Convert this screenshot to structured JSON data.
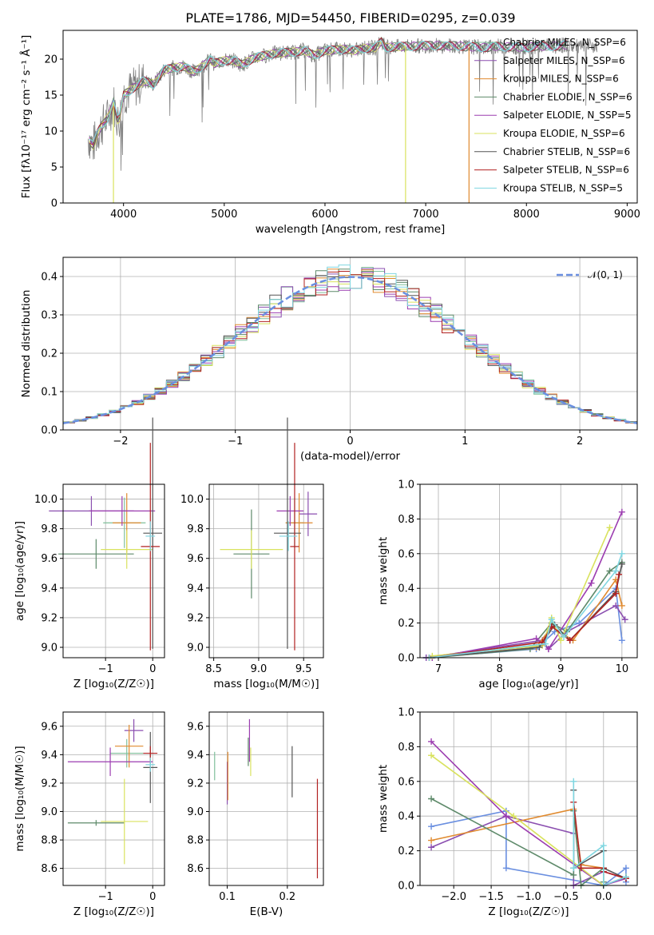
{
  "page_title": "PLATE=1786, MJD=54450, FIBERID=0295, z=0.039",
  "palette": [
    "#7fbf9a",
    "#8b4fb0",
    "#e08a2f",
    "#5e8a6a",
    "#9c3db0",
    "#d9e25e",
    "#555555",
    "#b22222",
    "#7fd6e0"
  ],
  "chart_data": [
    {
      "id": "spectrum",
      "type": "line",
      "title": "PLATE=1786, MJD=54450, FIBERID=0295, z=0.039",
      "xlabel": "wavelength [Angstrom, rest frame]",
      "ylabel": "Flux [fλ10⁻¹⁷ erg cm⁻² s⁻¹ Å⁻¹]",
      "xlim": [
        3400,
        9100
      ],
      "ylim": [
        0,
        24
      ],
      "xticks": [
        4000,
        5000,
        6000,
        7000,
        8000,
        9000
      ],
      "yticks": [
        0,
        5,
        10,
        15,
        20
      ],
      "grid": false,
      "legend_position": "top-right",
      "legend": [
        "Chabrier MILES, N_SSP=6",
        "Salpeter MILES, N_SSP=6",
        "Kroupa MILES, N_SSP=6",
        "Chabrier ELODIE, N_SSP=6",
        "Salpeter ELODIE, N_SSP=5",
        "Kroupa ELODIE, N_SSP=6",
        "Chabrier STELIB, N_SSP=6",
        "Salpeter STELIB, N_SSP=6",
        "Kroupa STELIB, N_SSP=5"
      ],
      "data_x": [
        3650,
        3700,
        3750,
        3800,
        3850,
        3900,
        3950,
        4000,
        4050,
        4100,
        4200,
        4300,
        4400,
        4500,
        4600,
        4700,
        4800,
        4861,
        4900,
        5000,
        5100,
        5175,
        5300,
        5400,
        5500,
        5600,
        5700,
        5800,
        5890,
        6000,
        6100,
        6200,
        6300,
        6400,
        6500,
        6563,
        6600,
        6700,
        6800,
        6900,
        7000,
        7100,
        7200,
        7300,
        7400,
        7500,
        7600,
        7700,
        7800,
        7900,
        8000,
        8100,
        8200,
        8300,
        8400,
        8500,
        8600,
        8700
      ],
      "data_y": [
        9,
        8,
        10,
        11,
        12,
        14,
        11,
        15,
        15.5,
        16,
        17,
        16.5,
        18.5,
        18.8,
        19,
        18.2,
        19.2,
        20,
        19.4,
        19.8,
        19.8,
        19.2,
        20.2,
        20.5,
        20.8,
        20.9,
        21,
        21.2,
        20.5,
        21.2,
        21.3,
        21.4,
        21.2,
        21.5,
        21.6,
        22.5,
        21.6,
        21.7,
        21.8,
        21.8,
        21.9,
        21.9,
        21.8,
        21.9,
        21.7,
        21.7,
        21.6,
        21.8,
        21.7,
        21.7,
        21.6,
        21.8,
        21.8,
        21.8,
        22,
        21.7,
        21.7,
        21.9
      ],
      "model_cutoffs": [
        {
          "series": "Kroupa ELODIE, N_SSP=6",
          "x": 3900
        },
        {
          "series": "Kroupa ELODIE, N_SSP=6",
          "x": 6800
        },
        {
          "series": "Kroupa MILES, N_SSP=6",
          "x": 7430
        }
      ]
    },
    {
      "id": "residuals",
      "type": "bar",
      "xlabel": "(data-model)/error",
      "ylabel": "Normed distribution",
      "xlim": [
        -2.5,
        2.5
      ],
      "ylim": [
        0,
        0.45
      ],
      "xticks": [
        -2,
        -1,
        0,
        1,
        2
      ],
      "yticks": [
        0.0,
        0.1,
        0.2,
        0.3,
        0.4
      ],
      "grid": true,
      "legend": [
        "𝒩(0, 1)"
      ],
      "legend_position": "top-right",
      "bin_width": 0.1,
      "bin_start": -2.5,
      "reference_curve": "normal(0,1)"
    },
    {
      "id": "age-vs-z",
      "type": "scatter",
      "xlabel": "Z [log₁₀(Z/Z☉)]",
      "ylabel": "age  [log₁₀(age/yr)]",
      "xlim": [
        -1.9,
        0.25
      ],
      "ylim": [
        8.93,
        10.1
      ],
      "xticks": [
        -1,
        0
      ],
      "yticks": [
        9.0,
        9.2,
        9.4,
        9.6,
        9.8,
        10.0
      ],
      "grid": true,
      "points": [
        {
          "x": -0.6,
          "y": 9.84,
          "xerr": 0.45,
          "yerr": 0.17
        },
        {
          "x": -1.3,
          "y": 9.92,
          "xerr": 0.9,
          "yerr": 0.1
        },
        {
          "x": -0.55,
          "y": 9.84,
          "xerr": 0.3,
          "yerr": 0.2
        },
        {
          "x": -1.2,
          "y": 9.63,
          "xerr": 0.8,
          "yerr": 0.1
        },
        {
          "x": -0.65,
          "y": 9.92,
          "xerr": 0.7,
          "yerr": 0.1
        },
        {
          "x": -0.55,
          "y": 9.66,
          "xerr": 0.55,
          "yerr": 0.13
        },
        {
          "x": 0.0,
          "y": 9.77,
          "xerr": 0.2,
          "yerr": 0.78
        },
        {
          "x": -0.05,
          "y": 9.68,
          "xerr": 0.2,
          "yerr": 0.7
        },
        {
          "x": -0.05,
          "y": 9.75,
          "xerr": 0.1,
          "yerr": 0.1
        }
      ]
    },
    {
      "id": "age-vs-mass",
      "type": "scatter",
      "xlabel": "mass [log₁₀(M/M☉)]",
      "ylabel": "",
      "xlim": [
        8.45,
        9.72
      ],
      "ylim": [
        8.93,
        10.1
      ],
      "xticks": [
        8.5,
        9.0,
        9.5
      ],
      "yticks": [
        9.0,
        9.2,
        9.4,
        9.6,
        9.8,
        10.0
      ],
      "grid": true,
      "points": [
        {
          "x": 9.4,
          "y": 9.84,
          "xerr": 0.1,
          "yerr": 0.17
        },
        {
          "x": 9.55,
          "y": 9.9,
          "xerr": 0.1,
          "yerr": 0.15
        },
        {
          "x": 9.45,
          "y": 9.84,
          "xerr": 0.15,
          "yerr": 0.2
        },
        {
          "x": 8.92,
          "y": 9.63,
          "xerr": 0.2,
          "yerr": 0.3
        },
        {
          "x": 9.35,
          "y": 9.92,
          "xerr": 0.15,
          "yerr": 0.1
        },
        {
          "x": 8.92,
          "y": 9.66,
          "xerr": 0.35,
          "yerr": 0.13
        },
        {
          "x": 9.32,
          "y": 9.77,
          "xerr": 0.15,
          "yerr": 0.78
        },
        {
          "x": 9.4,
          "y": 9.68,
          "xerr": 0.05,
          "yerr": 0.7
        },
        {
          "x": 9.33,
          "y": 9.75,
          "xerr": 0.1,
          "yerr": 0.1
        }
      ]
    },
    {
      "id": "weight-vs-age",
      "type": "line",
      "xlabel": "age  [log₁₀(age/yr)]",
      "ylabel": "mass weight",
      "xlim": [
        6.7,
        10.25
      ],
      "ylim": [
        0,
        1
      ],
      "xticks": [
        7,
        8,
        9,
        10
      ],
      "yticks": [
        0.0,
        0.2,
        0.4,
        0.6,
        0.8,
        1.0
      ],
      "grid": true,
      "series": [
        {
          "x": [
            6.8,
            8.6,
            8.9,
            9.3,
            9.9,
            10.0
          ],
          "y": [
            0.0,
            0.05,
            0.15,
            0.2,
            0.4,
            0.1
          ]
        },
        {
          "x": [
            6.8,
            8.7,
            8.8,
            9.1,
            9.9,
            10.05
          ],
          "y": [
            0.0,
            0.1,
            0.05,
            0.15,
            0.3,
            0.22
          ]
        },
        {
          "x": [
            6.9,
            8.6,
            8.85,
            9.2,
            9.9,
            10.0
          ],
          "y": [
            0.0,
            0.06,
            0.18,
            0.1,
            0.45,
            0.3
          ]
        },
        {
          "x": [
            6.9,
            8.5,
            8.85,
            9.1,
            9.8,
            10.0
          ],
          "y": [
            0.0,
            0.05,
            0.2,
            0.15,
            0.5,
            0.55
          ]
        },
        {
          "x": [
            6.9,
            8.6,
            8.8,
            9.5,
            10.0
          ],
          "y": [
            0.0,
            0.11,
            0.05,
            0.43,
            0.84
          ]
        },
        {
          "x": [
            6.9,
            8.7,
            8.85,
            9.0,
            9.8
          ],
          "y": [
            0.01,
            0.07,
            0.23,
            0.1,
            0.75
          ]
        },
        {
          "x": [
            6.85,
            8.65,
            8.9,
            9.15,
            9.9,
            10.0
          ],
          "y": [
            0.0,
            0.06,
            0.19,
            0.1,
            0.38,
            0.54
          ]
        },
        {
          "x": [
            6.85,
            8.7,
            8.85,
            9.15,
            9.9,
            9.95
          ],
          "y": [
            0.0,
            0.09,
            0.18,
            0.1,
            0.37,
            0.48
          ]
        },
        {
          "x": [
            6.85,
            8.75,
            8.85,
            9.05,
            9.9,
            10.0
          ],
          "y": [
            0.0,
            0.08,
            0.22,
            0.12,
            0.5,
            0.6
          ]
        }
      ]
    },
    {
      "id": "mass-vs-z",
      "type": "scatter",
      "xlabel": "Z [log₁₀(Z/Z☉)]",
      "ylabel": "mass [log₁₀(M/M☉)]",
      "xlim": [
        -1.9,
        0.25
      ],
      "ylim": [
        8.48,
        9.7
      ],
      "xticks": [
        -1,
        0
      ],
      "yticks": [
        8.6,
        8.8,
        9.0,
        9.2,
        9.4,
        9.6
      ],
      "grid": true,
      "points": [
        {
          "x": -0.55,
          "y": 9.41,
          "xerr": 0.35,
          "yerr": 0.1
        },
        {
          "x": -0.4,
          "y": 9.57,
          "xerr": 0.2,
          "yerr": 0.08
        },
        {
          "x": -0.5,
          "y": 9.46,
          "xerr": 0.3,
          "yerr": 0.15
        },
        {
          "x": -1.2,
          "y": 8.92,
          "xerr": 0.6,
          "yerr": 0.02
        },
        {
          "x": -0.9,
          "y": 9.35,
          "xerr": 0.9,
          "yerr": 0.1
        },
        {
          "x": -0.6,
          "y": 8.93,
          "xerr": 0.5,
          "yerr": 0.3
        },
        {
          "x": -0.05,
          "y": 9.31,
          "xerr": 0.15,
          "yerr": 0.25
        },
        {
          "x": -0.05,
          "y": 9.41,
          "xerr": 0.15,
          "yerr": 0.05
        },
        {
          "x": -0.05,
          "y": 9.33,
          "xerr": 0.1,
          "yerr": 0.05
        }
      ]
    },
    {
      "id": "mass-vs-ebv",
      "type": "scatter",
      "xlabel": "E(B-V)",
      "ylabel": "",
      "xlim": [
        0.07,
        0.26
      ],
      "ylim": [
        8.48,
        9.7
      ],
      "xticks": [
        0.1,
        0.2
      ],
      "yticks": [
        8.6,
        8.8,
        9.0,
        9.2,
        9.4,
        9.6
      ],
      "grid": true,
      "points": [
        {
          "x": 0.079,
          "y": 9.32,
          "yerr": 0.1
        },
        {
          "x": 0.1,
          "y": 9.2,
          "yerr": 0.15
        },
        {
          "x": 0.101,
          "y": 9.25,
          "yerr": 0.17
        },
        {
          "x": 0.135,
          "y": 9.42,
          "yerr": 0.1
        },
        {
          "x": 0.137,
          "y": 9.5,
          "yerr": 0.15
        },
        {
          "x": 0.139,
          "y": 9.35,
          "yerr": 0.1
        },
        {
          "x": 0.208,
          "y": 9.28,
          "yerr": 0.18
        },
        {
          "x": 0.25,
          "y": 8.88,
          "yerr": 0.35
        }
      ]
    },
    {
      "id": "weight-vs-z",
      "type": "line",
      "xlabel": "Z [log₁₀(Z/Z☉)]",
      "ylabel": "mass weight",
      "xlim": [
        -2.45,
        0.45
      ],
      "ylim": [
        0,
        1
      ],
      "xticks": [
        -2.0,
        -1.5,
        -1.0,
        -0.5,
        0.0
      ],
      "yticks": [
        0.0,
        0.2,
        0.4,
        0.6,
        0.8,
        1.0
      ],
      "grid": true,
      "series": [
        {
          "x": [
            -2.3,
            -1.3,
            -1.3,
            0.0,
            0.3,
            0.3
          ],
          "y": [
            0.34,
            0.43,
            0.1,
            0.0,
            0.1,
            0.02
          ]
        },
        {
          "x": [
            -2.3,
            -1.3,
            -0.4,
            -0.4,
            0.0,
            0.3
          ],
          "y": [
            0.22,
            0.4,
            0.3,
            0.0,
            0.08,
            0.04
          ]
        },
        {
          "x": [
            -2.3,
            -0.4,
            -0.3,
            0.0,
            0.0,
            0.3
          ],
          "y": [
            0.26,
            0.44,
            0.12,
            0.1,
            0.0,
            0.05
          ]
        },
        {
          "x": [
            -2.3,
            -0.4,
            -0.4,
            -0.3,
            0.0,
            0.0
          ],
          "y": [
            0.5,
            0.06,
            0.43,
            0.0,
            0.1,
            0.02
          ]
        },
        {
          "x": [
            -2.3,
            -1.3,
            0.0,
            0.3
          ],
          "y": [
            0.83,
            0.4,
            0.0,
            0.04
          ]
        },
        {
          "x": [
            -2.3,
            -1.2,
            0.0
          ],
          "y": [
            0.75,
            0.4,
            0.0
          ]
        },
        {
          "x": [
            -0.4,
            -0.4,
            0.0,
            0.0,
            0.3
          ],
          "y": [
            0.55,
            0.1,
            0.2,
            0.1,
            0.04
          ]
        },
        {
          "x": [
            -0.4,
            -0.3,
            0.0,
            0.0,
            0.3
          ],
          "y": [
            0.48,
            0.1,
            0.1,
            0.08,
            0.04
          ]
        },
        {
          "x": [
            -0.4,
            -0.4,
            0.0,
            0.0,
            0.3
          ],
          "y": [
            0.6,
            0.1,
            0.23,
            0.0,
            0.05
          ]
        }
      ]
    }
  ]
}
